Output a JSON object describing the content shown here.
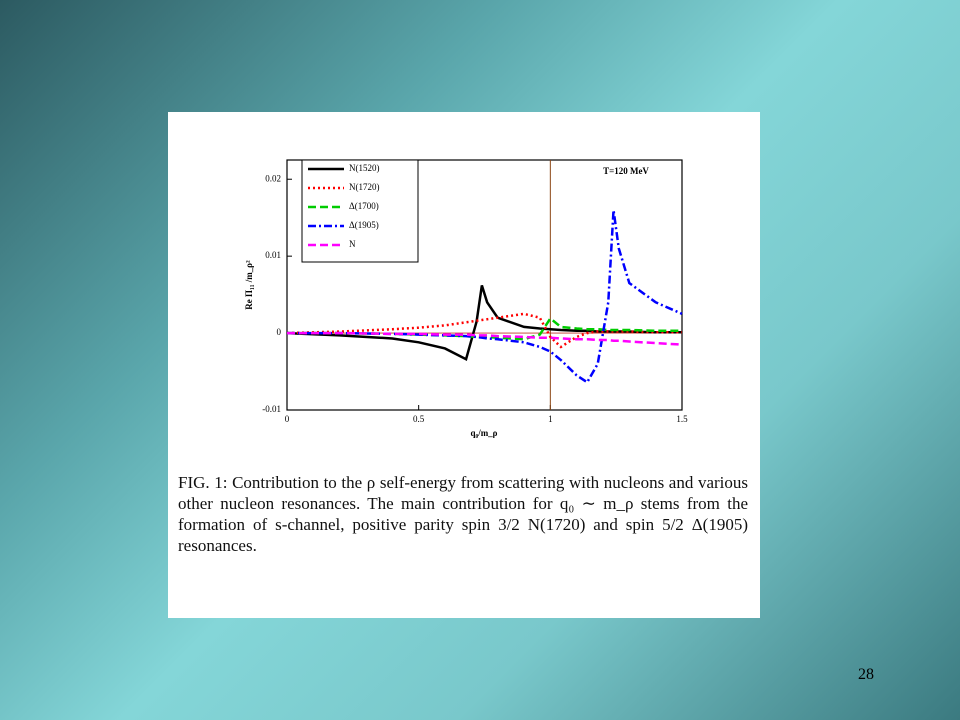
{
  "chart_data": {
    "type": "line",
    "annotation": "T=120 MeV",
    "x_label": "q₀/m_ρ",
    "y_label": "Re Π₁₁ /m_ρ²",
    "x": [
      0,
      0.2,
      0.4,
      0.5,
      0.6,
      0.68,
      0.72,
      0.74,
      0.76,
      0.8,
      0.9,
      0.96,
      1.0,
      1.04,
      1.1,
      1.14,
      1.18,
      1.22,
      1.24,
      1.26,
      1.3,
      1.4,
      1.5
    ],
    "series": [
      {
        "name": "N(1520)",
        "color": "#000000",
        "style": "solid",
        "values": [
          0,
          -0.0003,
          -0.0007,
          -0.0012,
          -0.002,
          -0.0034,
          0.0015,
          0.0062,
          0.004,
          0.002,
          0.0008,
          0.0006,
          0.0005,
          0.0004,
          0.0003,
          0.0003,
          0.0002,
          0.0002,
          0.0002,
          0.0002,
          0.0002,
          0.0001,
          0.0001
        ]
      },
      {
        "name": "N(1720)",
        "color": "#ff0000",
        "style": "dotted",
        "values": [
          0,
          0.0002,
          0.0005,
          0.0007,
          0.001,
          0.0014,
          0.0016,
          0.0017,
          0.0018,
          0.002,
          0.0025,
          0.002,
          -0.0005,
          -0.0018,
          -0.0005,
          0,
          0.0002,
          0.0002,
          0.0002,
          0.0002,
          0.0002,
          0.0001,
          0.0001
        ]
      },
      {
        "name": "Δ(1700)",
        "color": "#00cc00",
        "style": "dashed",
        "values": [
          0,
          0,
          -0.0001,
          -0.0002,
          -0.0003,
          -0.0004,
          -0.0005,
          -0.0005,
          -0.0005,
          -0.0006,
          -0.0008,
          -0.0002,
          0.0019,
          0.0008,
          0.0006,
          0.0005,
          0.0005,
          0.0004,
          0.0004,
          0.0004,
          0.0004,
          0.0003,
          0.0003
        ]
      },
      {
        "name": "Δ(1905)",
        "color": "#0000ff",
        "style": "dashdot",
        "values": [
          0,
          0,
          -0.0001,
          -0.0002,
          -0.0003,
          -0.0004,
          -0.0005,
          -0.0006,
          -0.0007,
          -0.0008,
          -0.0012,
          -0.0018,
          -0.0024,
          -0.0035,
          -0.0055,
          -0.0064,
          -0.004,
          0.004,
          0.016,
          0.011,
          0.0065,
          0.004,
          0.0025
        ]
      },
      {
        "name": "N",
        "color": "#ff00ff",
        "style": "dashed",
        "values": [
          0,
          0,
          -0.0001,
          -0.0001,
          -0.0002,
          -0.0002,
          -0.0003,
          -0.0003,
          -0.0003,
          -0.0004,
          -0.0005,
          -0.0006,
          -0.0006,
          -0.0007,
          -0.0008,
          -0.0008,
          -0.0009,
          -0.0009,
          -0.001,
          -0.001,
          -0.0011,
          -0.0013,
          -0.0015
        ]
      }
    ],
    "xlim": [
      0,
      1.5
    ],
    "xticks": [
      0,
      0.5,
      1,
      1.5
    ],
    "ylim": [
      -0.01,
      0.0225
    ],
    "yticks": [
      -0.01,
      0,
      0.01,
      0.02
    ],
    "vline": 1,
    "hline": 0,
    "legend": "upper left"
  },
  "caption": "FIG. 1: Contribution to the ρ self-energy from scattering with nucleons and various other nucleon resonances. The main contribution for q₀ ∼ m_ρ stems from the formation of s-channel, positive parity spin 3/2 N(1720) and spin 5/2 Δ(1905) resonances.",
  "slide_number": "28"
}
